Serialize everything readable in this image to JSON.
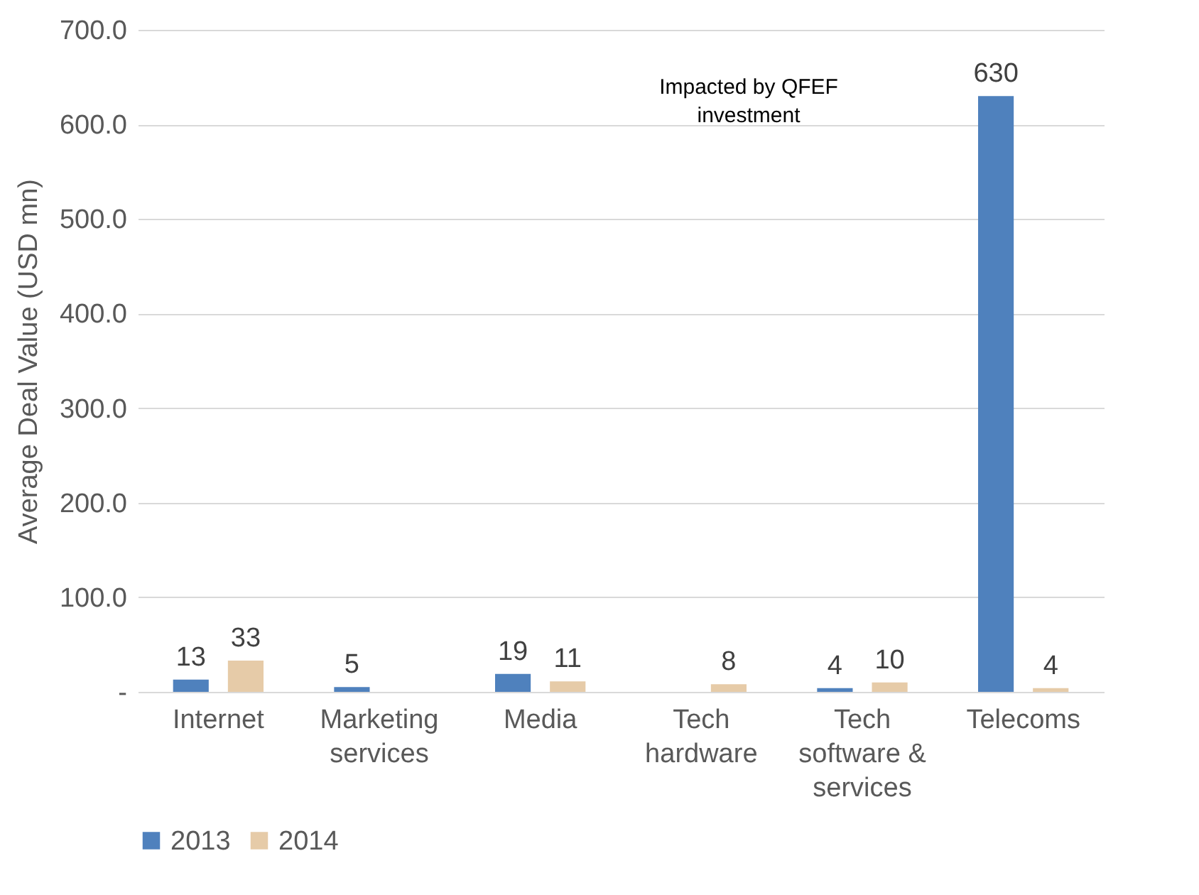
{
  "chart_data": {
    "type": "bar",
    "ylabel": "Average Deal Value (USD mn)",
    "categories": [
      "Internet",
      "Marketing services",
      "Media",
      "Tech hardware",
      "Tech software & services",
      "Telecoms"
    ],
    "series": [
      {
        "name": "2013",
        "color": "#4f81bd",
        "values": [
          13,
          5,
          19,
          null,
          4,
          630
        ]
      },
      {
        "name": "2014",
        "color": "#e6cba8",
        "values": [
          33,
          null,
          11,
          8,
          10,
          4
        ]
      }
    ],
    "ylim": [
      0,
      700
    ],
    "yticks": [
      {
        "value": 0,
        "label": "-"
      },
      {
        "value": 100,
        "label": "100.0"
      },
      {
        "value": 200,
        "label": "200.0"
      },
      {
        "value": 300,
        "label": "300.0"
      },
      {
        "value": 400,
        "label": "400.0"
      },
      {
        "value": 500,
        "label": "500.0"
      },
      {
        "value": 600,
        "label": "600.0"
      },
      {
        "value": 700,
        "label": "700.0"
      }
    ],
    "grid": "y",
    "legend": "bottom",
    "data_labels": true,
    "annotations": [
      "Impacted by QFEF investment"
    ]
  }
}
